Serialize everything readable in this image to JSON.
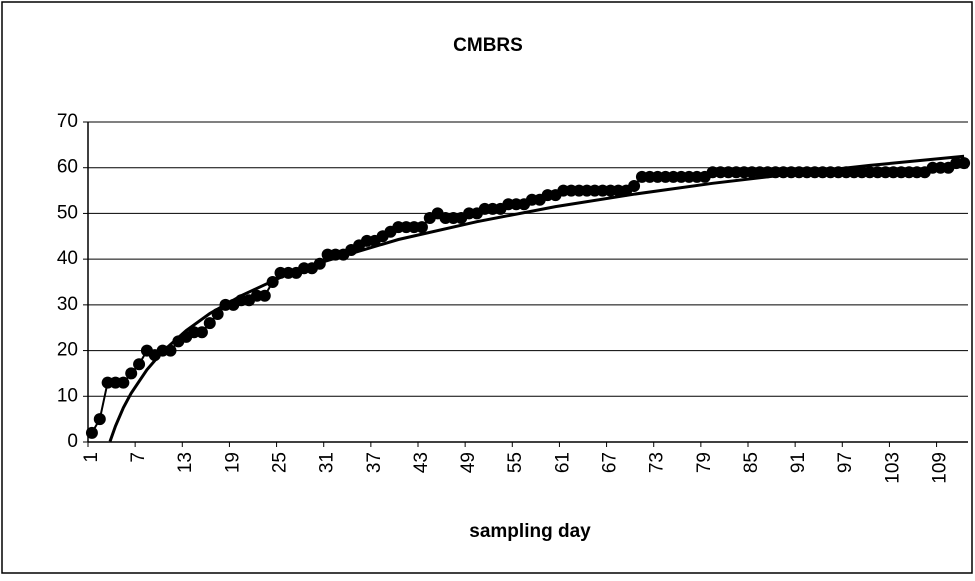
{
  "chart_data": {
    "type": "line",
    "title": "CMBRS",
    "x_label": "sampling day",
    "categories": [
      1,
      null,
      null,
      null,
      null,
      null,
      7,
      null,
      null,
      null,
      null,
      null,
      13,
      null,
      null,
      null,
      null,
      null,
      19,
      null,
      null,
      null,
      null,
      null,
      25,
      null,
      null,
      null,
      null,
      null,
      31,
      null,
      null,
      null,
      null,
      null,
      37,
      null,
      null,
      null,
      null,
      null,
      43,
      null,
      null,
      null,
      null,
      null,
      49,
      null,
      null,
      null,
      null,
      null,
      55,
      null,
      null,
      null,
      null,
      null,
      61,
      null,
      null,
      null,
      null,
      null,
      67,
      null,
      null,
      null,
      null,
      null,
      73,
      null,
      null,
      null,
      null,
      null,
      79,
      null,
      null,
      null,
      null,
      null,
      85,
      null,
      null,
      null,
      null,
      null,
      91,
      null,
      null,
      null,
      null,
      null,
      97,
      null,
      null,
      null,
      null,
      null,
      103,
      null,
      null,
      null,
      null,
      null,
      109,
      null,
      null,
      null
    ],
    "series": [
      {
        "color": "#000000",
        "values": [
          2,
          5,
          13,
          13,
          13,
          15,
          17,
          20,
          19,
          20,
          20,
          22,
          23,
          24,
          24,
          26,
          28,
          30,
          30,
          31,
          31,
          32,
          32,
          35,
          37,
          37,
          37,
          38,
          38,
          39,
          41,
          41,
          41,
          42,
          43,
          44,
          44,
          45,
          46,
          47,
          47,
          47,
          47,
          49,
          50,
          49,
          49,
          49,
          50,
          50,
          51,
          51,
          51,
          52,
          52,
          52,
          53,
          53,
          54,
          54,
          55,
          55,
          55,
          55,
          55,
          55,
          55,
          55,
          55,
          56,
          58,
          58,
          58,
          58,
          58,
          58,
          58,
          58,
          58,
          59,
          59,
          59,
          59,
          59,
          59,
          59,
          59,
          59,
          59,
          59,
          59,
          59,
          59,
          59,
          59,
          59,
          59,
          59,
          59,
          59,
          59,
          59,
          59,
          59,
          59,
          59,
          59,
          60,
          60,
          60,
          61,
          61
        ]
      }
    ],
    "trendline": {
      "color": "#000000",
      "x": [
        3.3,
        4,
        5,
        6,
        8,
        10,
        13,
        16,
        20,
        25,
        30,
        40,
        50,
        60,
        70,
        80,
        90,
        100,
        112
      ],
      "values": [
        0.1,
        3.5,
        7.5,
        10.7,
        15.8,
        19.8,
        24.4,
        28.1,
        32.0,
        36.0,
        39.2,
        44.3,
        48.2,
        51.5,
        54.2,
        56.6,
        58.6,
        60.5,
        62.5
      ]
    },
    "ylim": [
      0,
      70
    ],
    "yticks": [
      0,
      10,
      20,
      30,
      40,
      50,
      60,
      70
    ],
    "grid": true
  }
}
